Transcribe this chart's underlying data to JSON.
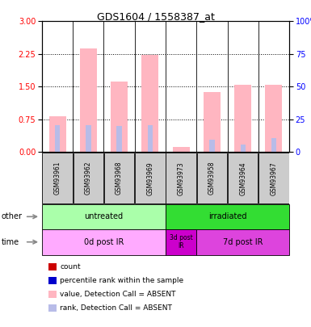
{
  "title": "GDS1604 / 1558387_at",
  "samples": [
    "GSM93961",
    "GSM93962",
    "GSM93968",
    "GSM93969",
    "GSM93973",
    "GSM93958",
    "GSM93964",
    "GSM93967"
  ],
  "bar_heights_pink": [
    0.82,
    2.38,
    1.62,
    2.22,
    0.12,
    1.38,
    1.54,
    1.54
  ],
  "rank_heights_lavender": [
    0.62,
    0.62,
    0.6,
    0.62,
    0.0,
    0.28,
    0.18,
    0.32
  ],
  "ylim_left": [
    0,
    3
  ],
  "ylim_right": [
    0,
    100
  ],
  "yticks_left": [
    0,
    0.75,
    1.5,
    2.25,
    3
  ],
  "yticks_right": [
    0,
    25,
    50,
    75,
    100
  ],
  "ytick_labels_right": [
    "0",
    "25",
    "50",
    "75",
    "100%"
  ],
  "color_pink": "#ffb6c1",
  "color_lavender": "#b8bce8",
  "color_red_dark": "#cc0000",
  "color_blue_dark": "#0000cc",
  "color_gray_box": "#cccccc",
  "other_groups": [
    {
      "label": "untreated",
      "start": 0,
      "end": 4,
      "color": "#aaffaa"
    },
    {
      "label": "irradiated",
      "start": 4,
      "end": 8,
      "color": "#33dd33"
    }
  ],
  "time_groups": [
    {
      "label": "0d post IR",
      "start": 0,
      "end": 4,
      "color": "#ffaaff"
    },
    {
      "label": "3d post\nIR",
      "start": 4,
      "end": 5,
      "color": "#cc00cc"
    },
    {
      "label": "7d post IR",
      "start": 5,
      "end": 8,
      "color": "#dd44dd"
    }
  ],
  "legend_items": [
    {
      "color": "#cc0000",
      "label": "count"
    },
    {
      "color": "#0000cc",
      "label": "percentile rank within the sample"
    },
    {
      "color": "#ffb6c1",
      "label": "value, Detection Call = ABSENT"
    },
    {
      "color": "#b8bce8",
      "label": "rank, Detection Call = ABSENT"
    }
  ]
}
